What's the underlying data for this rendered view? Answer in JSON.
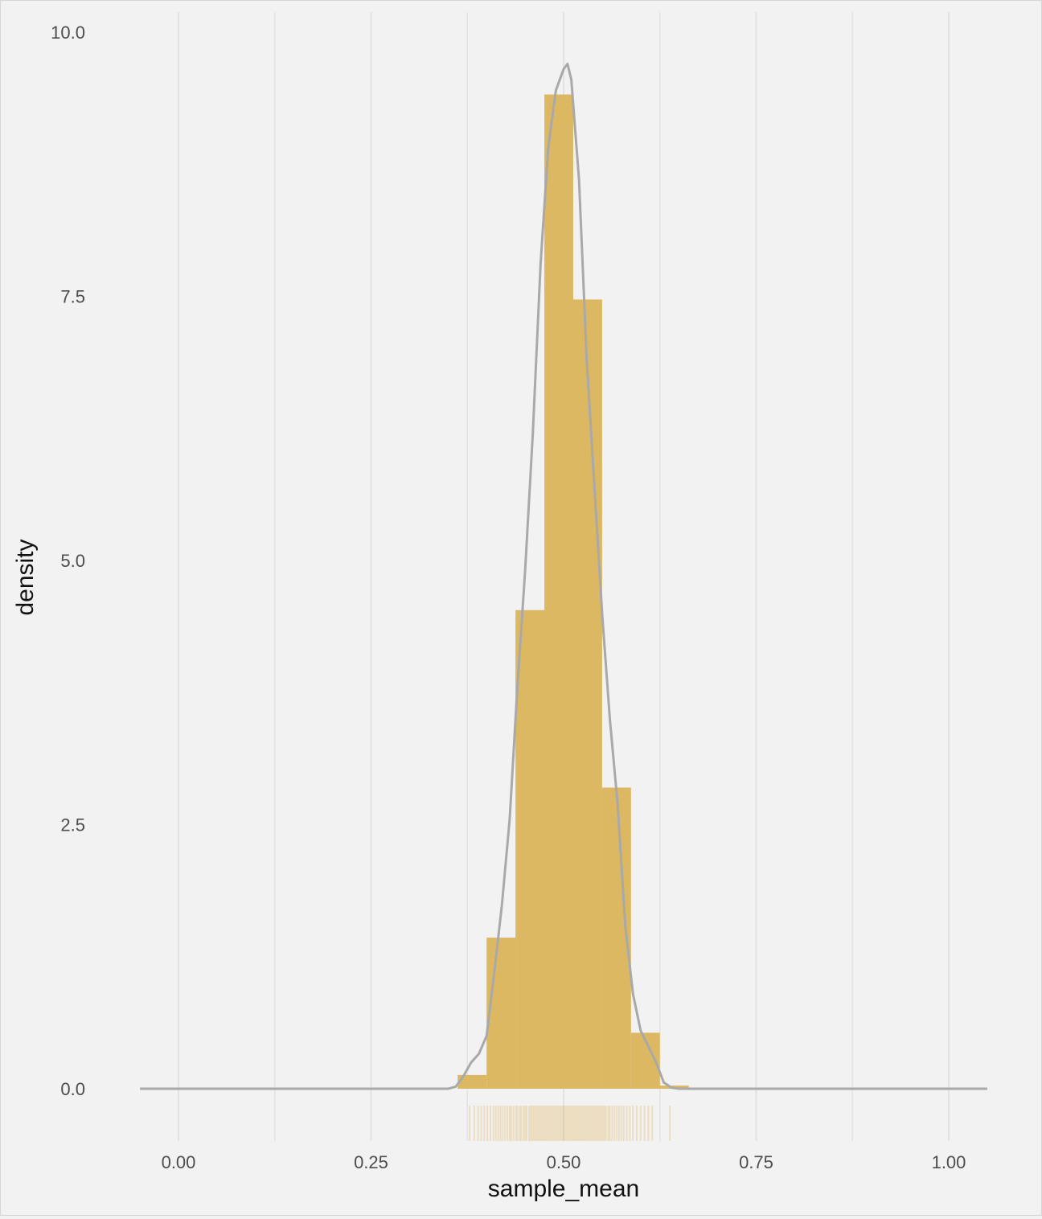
{
  "chart_data": {
    "type": "bar",
    "subtype": "histogram-with-density-and-rug",
    "xlabel": "sample_mean",
    "ylabel": "density",
    "xlim": [
      -0.05,
      1.05
    ],
    "ylim": [
      0,
      10
    ],
    "xticks": [
      0.0,
      0.25,
      0.5,
      0.75,
      1.0
    ],
    "xtick_labels": [
      "0.00",
      "0.25",
      "0.50",
      "0.75",
      "1.00"
    ],
    "yticks": [
      0.0,
      2.5,
      5.0,
      7.5,
      10.0
    ],
    "ytick_labels": [
      "0.0",
      "2.5",
      "5.0",
      "7.5",
      "10.0"
    ],
    "grid": "vertical major and minor lines",
    "colors": {
      "background": "#f2f2f2",
      "grid": "#e3e3e3",
      "bars": "#dcb862",
      "density_line": "#a9a9a9",
      "rug": "#d4961a",
      "tick_text": "#4d4d4d",
      "title_text": "#111111"
    },
    "bins": [
      {
        "x0": 0.3625,
        "x1": 0.4,
        "value": 0.13
      },
      {
        "x0": 0.4,
        "x1": 0.4375,
        "value": 1.43
      },
      {
        "x0": 0.4375,
        "x1": 0.475,
        "value": 4.53
      },
      {
        "x0": 0.475,
        "x1": 0.5125,
        "value": 9.41
      },
      {
        "x0": 0.5125,
        "x1": 0.55,
        "value": 7.47
      },
      {
        "x0": 0.55,
        "x1": 0.5875,
        "value": 2.85
      },
      {
        "x0": 0.5875,
        "x1": 0.625,
        "value": 0.53
      },
      {
        "x0": 0.625,
        "x1": 0.6625,
        "value": 0.03
      }
    ],
    "density": {
      "x": [
        -0.05,
        0.35,
        0.36,
        0.37,
        0.38,
        0.39,
        0.4,
        0.41,
        0.42,
        0.43,
        0.44,
        0.45,
        0.46,
        0.47,
        0.48,
        0.49,
        0.5,
        0.505,
        0.51,
        0.52,
        0.53,
        0.54,
        0.55,
        0.56,
        0.57,
        0.58,
        0.59,
        0.6,
        0.61,
        0.62,
        0.63,
        0.64,
        0.65,
        1.05
      ],
      "y": [
        0.0,
        0.0,
        0.02,
        0.12,
        0.25,
        0.33,
        0.5,
        1.1,
        1.75,
        2.55,
        3.8,
        4.9,
        6.2,
        7.8,
        8.9,
        9.45,
        9.65,
        9.7,
        9.55,
        8.6,
        6.9,
        5.7,
        4.5,
        3.5,
        2.7,
        1.55,
        0.9,
        0.55,
        0.4,
        0.25,
        0.06,
        0.01,
        0.0,
        0.0
      ]
    },
    "rug": [
      0.378,
      0.384,
      0.389,
      0.393,
      0.397,
      0.401,
      0.405,
      0.409,
      0.412,
      0.415,
      0.418,
      0.421,
      0.424,
      0.427,
      0.43,
      0.432,
      0.435,
      0.438,
      0.44,
      0.443,
      0.445,
      0.448,
      0.45,
      0.452,
      0.455,
      0.457,
      0.459,
      0.461,
      0.463,
      0.465,
      0.467,
      0.469,
      0.471,
      0.473,
      0.475,
      0.477,
      0.479,
      0.481,
      0.483,
      0.485,
      0.487,
      0.489,
      0.491,
      0.493,
      0.495,
      0.497,
      0.499,
      0.501,
      0.503,
      0.505,
      0.507,
      0.509,
      0.511,
      0.513,
      0.515,
      0.517,
      0.519,
      0.521,
      0.523,
      0.525,
      0.527,
      0.529,
      0.531,
      0.533,
      0.535,
      0.537,
      0.539,
      0.541,
      0.543,
      0.545,
      0.547,
      0.549,
      0.551,
      0.553,
      0.555,
      0.558,
      0.56,
      0.563,
      0.566,
      0.569,
      0.572,
      0.575,
      0.578,
      0.582,
      0.586,
      0.59,
      0.595,
      0.6,
      0.605,
      0.61,
      0.615,
      0.638
    ]
  }
}
